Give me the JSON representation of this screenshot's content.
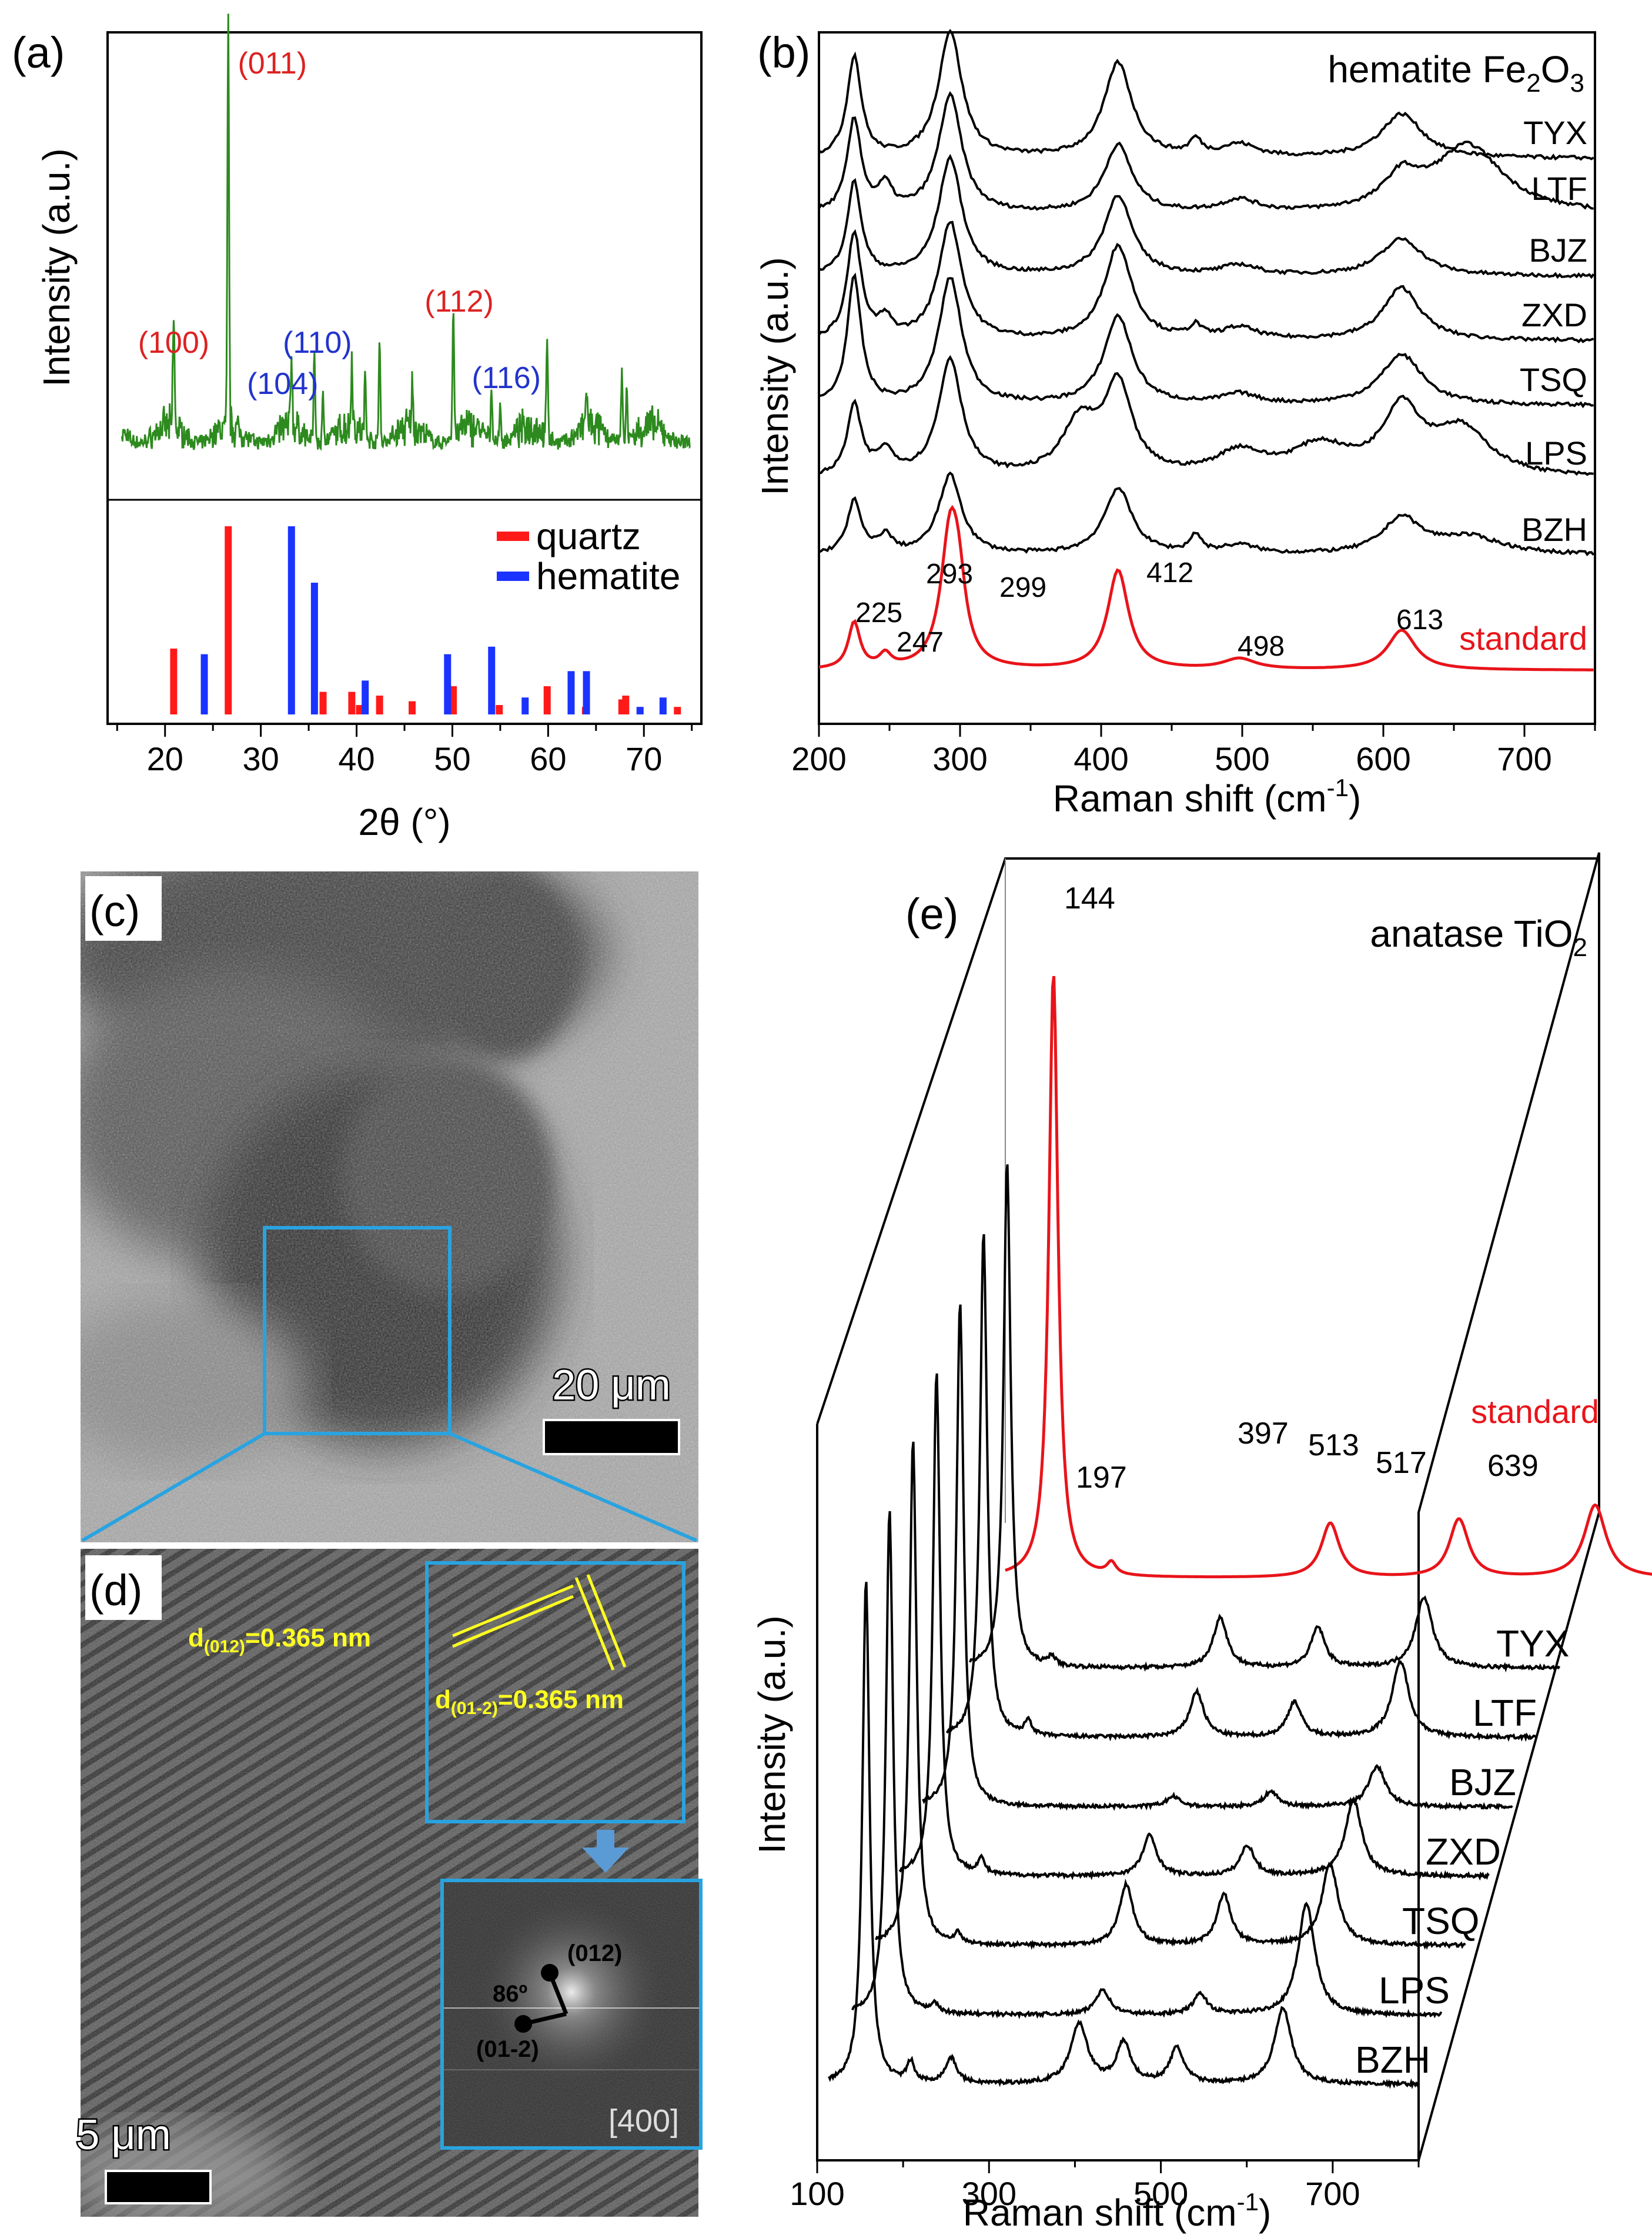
{
  "chart_data": [
    {
      "panel": "(a)",
      "type": "line",
      "xlabel": "2θ (°)",
      "ylabel": "Intensity (a.u.)",
      "xlim": [
        14,
        76
      ],
      "xticks": [
        20,
        30,
        40,
        50,
        60,
        70
      ],
      "pattern_peaks": [
        {
          "x": 20.9,
          "h": 0.28
        },
        {
          "x": 26.6,
          "h": 1.0
        },
        {
          "x": 33.2,
          "h": 0.18
        },
        {
          "x": 35.6,
          "h": 0.22
        },
        {
          "x": 36.5,
          "h": 0.12
        },
        {
          "x": 39.5,
          "h": 0.17
        },
        {
          "x": 40.9,
          "h": 0.14
        },
        {
          "x": 42.4,
          "h": 0.25
        },
        {
          "x": 45.8,
          "h": 0.1
        },
        {
          "x": 50.1,
          "h": 0.31
        },
        {
          "x": 54.1,
          "h": 0.12
        },
        {
          "x": 55.0,
          "h": 0.09
        },
        {
          "x": 59.9,
          "h": 0.23
        },
        {
          "x": 64.0,
          "h": 0.1
        },
        {
          "x": 67.7,
          "h": 0.17
        },
        {
          "x": 68.2,
          "h": 0.13
        }
      ],
      "peak_labels": [
        {
          "text": "(011)",
          "x": 26.6,
          "color": "#dd2222"
        },
        {
          "text": "(100)",
          "x": 20.9,
          "color": "#dd2222"
        },
        {
          "text": "(104)",
          "x": 33.2,
          "color": "#2233cc"
        },
        {
          "text": "(110)",
          "x": 35.6,
          "color": "#2233cc"
        },
        {
          "text": "(112)",
          "x": 50.1,
          "color": "#dd2222"
        },
        {
          "text": "(116)",
          "x": 54.1,
          "color": "#2233cc"
        }
      ],
      "reference": {
        "legend": [
          {
            "name": "quartz",
            "color": "#ff1a1a"
          },
          {
            "name": "hematite",
            "color": "#1a33ff"
          }
        ],
        "quartz": [
          {
            "x": 20.9,
            "h": 0.35
          },
          {
            "x": 26.6,
            "h": 1.0
          },
          {
            "x": 36.5,
            "h": 0.12
          },
          {
            "x": 39.5,
            "h": 0.12
          },
          {
            "x": 40.3,
            "h": 0.05
          },
          {
            "x": 42.4,
            "h": 0.1
          },
          {
            "x": 45.8,
            "h": 0.07
          },
          {
            "x": 50.1,
            "h": 0.15
          },
          {
            "x": 54.9,
            "h": 0.05
          },
          {
            "x": 59.9,
            "h": 0.15
          },
          {
            "x": 63.9,
            "h": 0.04
          },
          {
            "x": 67.7,
            "h": 0.08
          },
          {
            "x": 68.1,
            "h": 0.1
          },
          {
            "x": 73.5,
            "h": 0.04
          }
        ],
        "hematite": [
          {
            "x": 24.1,
            "h": 0.32
          },
          {
            "x": 33.2,
            "h": 1.0
          },
          {
            "x": 35.6,
            "h": 0.7
          },
          {
            "x": 40.9,
            "h": 0.18
          },
          {
            "x": 49.5,
            "h": 0.32
          },
          {
            "x": 54.1,
            "h": 0.36
          },
          {
            "x": 57.6,
            "h": 0.09
          },
          {
            "x": 62.4,
            "h": 0.23
          },
          {
            "x": 64.0,
            "h": 0.23
          },
          {
            "x": 69.6,
            "h": 0.04
          },
          {
            "x": 72.0,
            "h": 0.09
          }
        ]
      }
    },
    {
      "panel": "(b)",
      "type": "line",
      "title": "hematite Fe2O3",
      "title_main": "hematite Fe",
      "title_sub": "2",
      "title_main2": "O",
      "title_sub2": "3",
      "xlabel_main": "Raman shift (cm",
      "xlabel_sup": "-1",
      "xlabel_end": ")",
      "ylabel": "Intensity (a.u.)",
      "xlim": [
        200,
        750
      ],
      "xticks": [
        200,
        300,
        400,
        500,
        600,
        700
      ],
      "series": [
        {
          "name": "TYX",
          "color": "#000000",
          "peaks": [
            {
              "x": 225,
              "h": 0.8,
              "w": 6
            },
            {
              "x": 293,
              "h": 1.0,
              "w": 10
            },
            {
              "x": 412,
              "h": 0.75,
              "w": 12
            },
            {
              "x": 467,
              "h": 0.12,
              "w": 5
            },
            {
              "x": 498,
              "h": 0.1,
              "w": 15
            },
            {
              "x": 613,
              "h": 0.35,
              "w": 18
            }
          ]
        },
        {
          "name": "LTF",
          "color": "#000000",
          "peaks": [
            {
              "x": 225,
              "h": 0.75,
              "w": 6
            },
            {
              "x": 247,
              "h": 0.2,
              "w": 6
            },
            {
              "x": 293,
              "h": 0.95,
              "w": 10
            },
            {
              "x": 412,
              "h": 0.55,
              "w": 12
            },
            {
              "x": 498,
              "h": 0.1,
              "w": 15
            },
            {
              "x": 613,
              "h": 0.25,
              "w": 15
            },
            {
              "x": 660,
              "h": 0.55,
              "w": 30
            }
          ]
        },
        {
          "name": "BJZ",
          "color": "#000000",
          "peaks": [
            {
              "x": 225,
              "h": 0.75,
              "w": 6
            },
            {
              "x": 293,
              "h": 0.95,
              "w": 10
            },
            {
              "x": 412,
              "h": 0.65,
              "w": 12
            },
            {
              "x": 498,
              "h": 0.08,
              "w": 15
            },
            {
              "x": 613,
              "h": 0.3,
              "w": 18
            }
          ]
        },
        {
          "name": "ZXD",
          "color": "#000000",
          "peaks": [
            {
              "x": 225,
              "h": 0.9,
              "w": 6
            },
            {
              "x": 247,
              "h": 0.15,
              "w": 6
            },
            {
              "x": 293,
              "h": 1.0,
              "w": 10
            },
            {
              "x": 412,
              "h": 0.8,
              "w": 12
            },
            {
              "x": 467,
              "h": 0.1,
              "w": 5
            },
            {
              "x": 498,
              "h": 0.1,
              "w": 15
            },
            {
              "x": 613,
              "h": 0.45,
              "w": 16
            }
          ]
        },
        {
          "name": "TSQ",
          "color": "#000000",
          "peaks": [
            {
              "x": 225,
              "h": 1.0,
              "w": 6
            },
            {
              "x": 293,
              "h": 1.0,
              "w": 10
            },
            {
              "x": 412,
              "h": 0.7,
              "w": 12
            },
            {
              "x": 498,
              "h": 0.08,
              "w": 15
            },
            {
              "x": 613,
              "h": 0.4,
              "w": 18
            }
          ]
        },
        {
          "name": "LPS",
          "color": "#000000",
          "peaks": [
            {
              "x": 225,
              "h": 0.6,
              "w": 6
            },
            {
              "x": 247,
              "h": 0.2,
              "w": 8
            },
            {
              "x": 293,
              "h": 1.0,
              "w": 10
            },
            {
              "x": 385,
              "h": 0.45,
              "w": 15
            },
            {
              "x": 412,
              "h": 0.75,
              "w": 12
            },
            {
              "x": 498,
              "h": 0.2,
              "w": 20
            },
            {
              "x": 555,
              "h": 0.25,
              "w": 25
            },
            {
              "x": 613,
              "h": 0.55,
              "w": 16
            },
            {
              "x": 655,
              "h": 0.4,
              "w": 25
            }
          ]
        },
        {
          "name": "BZH",
          "color": "#000000",
          "peaks": [
            {
              "x": 225,
              "h": 0.6,
              "w": 6
            },
            {
              "x": 247,
              "h": 0.2,
              "w": 6
            },
            {
              "x": 293,
              "h": 0.9,
              "w": 10
            },
            {
              "x": 412,
              "h": 0.75,
              "w": 12
            },
            {
              "x": 467,
              "h": 0.2,
              "w": 5
            },
            {
              "x": 498,
              "h": 0.1,
              "w": 15
            },
            {
              "x": 613,
              "h": 0.4,
              "w": 16
            },
            {
              "x": 660,
              "h": 0.2,
              "w": 30
            }
          ]
        },
        {
          "name": "standard",
          "color": "#e8141a",
          "peaks": [
            {
              "x": 225,
              "h": 0.35,
              "w": 5
            },
            {
              "x": 247,
              "h": 0.1,
              "w": 5
            },
            {
              "x": 293,
              "h": 1.0,
              "w": 8
            },
            {
              "x": 299,
              "h": 0.4,
              "w": 6
            },
            {
              "x": 412,
              "h": 0.75,
              "w": 9
            },
            {
              "x": 498,
              "h": 0.08,
              "w": 14
            },
            {
              "x": 613,
              "h": 0.3,
              "w": 12
            }
          ]
        }
      ],
      "peak_labels": [
        {
          "text": "225",
          "x": 225
        },
        {
          "text": "247",
          "x": 247
        },
        {
          "text": "293",
          "x": 293
        },
        {
          "text": "299",
          "x": 299
        },
        {
          "text": "412",
          "x": 412
        },
        {
          "text": "498",
          "x": 498
        },
        {
          "text": "613",
          "x": 613
        }
      ]
    },
    {
      "panel": "(e)",
      "type": "line",
      "title_main": "anatase TiO",
      "title_sub": "2",
      "xlabel_main": "Raman shift (cm",
      "xlabel_sup": "-1",
      "xlabel_end": ")",
      "ylabel": "Intensity (a.u.)",
      "xlim": [
        100,
        800
      ],
      "xticks": [
        100,
        300,
        500,
        700
      ],
      "series": [
        {
          "name": "standard",
          "color": "#e8141a",
          "peaks": [
            {
              "x": 144,
              "h": 1.0,
              "w": 5
            },
            {
              "x": 197,
              "h": 0.02,
              "w": 5
            },
            {
              "x": 397,
              "h": 0.09,
              "w": 10
            },
            {
              "x": 513,
              "h": 0.06,
              "w": 10
            },
            {
              "x": 517,
              "h": 0.04,
              "w": 10
            },
            {
              "x": 639,
              "h": 0.12,
              "w": 12
            }
          ]
        },
        {
          "name": "TYX",
          "color": "#000000",
          "peaks": [
            {
              "x": 144,
              "h": 1.0,
              "w": 5
            },
            {
              "x": 197,
              "h": 0.02,
              "w": 5
            },
            {
              "x": 397,
              "h": 0.1,
              "w": 10
            },
            {
              "x": 513,
              "h": 0.08,
              "w": 10
            },
            {
              "x": 639,
              "h": 0.14,
              "w": 12
            }
          ]
        },
        {
          "name": "LTF",
          "color": "#000000",
          "peaks": [
            {
              "x": 144,
              "h": 1.0,
              "w": 5
            },
            {
              "x": 197,
              "h": 0.03,
              "w": 5
            },
            {
              "x": 397,
              "h": 0.09,
              "w": 10
            },
            {
              "x": 513,
              "h": 0.07,
              "w": 10
            },
            {
              "x": 639,
              "h": 0.15,
              "w": 12
            }
          ]
        },
        {
          "name": "BJZ",
          "color": "#000000",
          "peaks": [
            {
              "x": 144,
              "h": 1.0,
              "w": 5
            },
            {
              "x": 397,
              "h": 0.02,
              "w": 10
            },
            {
              "x": 513,
              "h": 0.03,
              "w": 10
            },
            {
              "x": 639,
              "h": 0.08,
              "w": 12
            }
          ]
        },
        {
          "name": "ZXD",
          "color": "#000000",
          "peaks": [
            {
              "x": 144,
              "h": 1.0,
              "w": 5
            },
            {
              "x": 197,
              "h": 0.03,
              "w": 5
            },
            {
              "x": 397,
              "h": 0.08,
              "w": 10
            },
            {
              "x": 513,
              "h": 0.06,
              "w": 10
            },
            {
              "x": 639,
              "h": 0.15,
              "w": 12
            }
          ]
        },
        {
          "name": "TSQ",
          "color": "#000000",
          "peaks": [
            {
              "x": 144,
              "h": 1.0,
              "w": 5
            },
            {
              "x": 197,
              "h": 0.02,
              "w": 5
            },
            {
              "x": 397,
              "h": 0.12,
              "w": 10
            },
            {
              "x": 513,
              "h": 0.1,
              "w": 10
            },
            {
              "x": 639,
              "h": 0.16,
              "w": 12
            }
          ]
        },
        {
          "name": "LPS",
          "color": "#000000",
          "peaks": [
            {
              "x": 144,
              "h": 1.0,
              "w": 5
            },
            {
              "x": 197,
              "h": 0.02,
              "w": 5
            },
            {
              "x": 397,
              "h": 0.05,
              "w": 10
            },
            {
              "x": 513,
              "h": 0.04,
              "w": 10
            },
            {
              "x": 639,
              "h": 0.22,
              "w": 12
            }
          ]
        },
        {
          "name": "BZH",
          "color": "#000000",
          "peaks": [
            {
              "x": 144,
              "h": 1.0,
              "w": 5
            },
            {
              "x": 197,
              "h": 0.04,
              "w": 5
            },
            {
              "x": 245,
              "h": 0.05,
              "w": 8
            },
            {
              "x": 397,
              "h": 0.12,
              "w": 12
            },
            {
              "x": 450,
              "h": 0.08,
              "w": 10
            },
            {
              "x": 513,
              "h": 0.07,
              "w": 10
            },
            {
              "x": 639,
              "h": 0.15,
              "w": 12
            }
          ]
        }
      ],
      "peak_labels": [
        {
          "text": "144",
          "x": 144
        },
        {
          "text": "197",
          "x": 197
        },
        {
          "text": "397",
          "x": 397
        },
        {
          "text": "513",
          "x": 513
        },
        {
          "text": "517",
          "x": 517
        },
        {
          "text": "639",
          "x": 639
        }
      ]
    }
  ],
  "panels": {
    "a": {
      "label": "(a)"
    },
    "b": {
      "label": "(b)"
    },
    "c": {
      "label": "(c)",
      "scalebar": "20 μm"
    },
    "d": {
      "label": "(d)",
      "scalebar": "5 μm",
      "d1_main": "d",
      "d1_sub": "(012)",
      "d1_val": "=0.365 nm",
      "d2_main": "d",
      "d2_sub": "(01-2)",
      "d2_val": "=0.365 nm",
      "fft_angle": "86º",
      "fft_spot1": "(012)",
      "fft_spot2": "(01-2)",
      "fft_zone": "[400]"
    },
    "e": {
      "label": "(e)"
    }
  },
  "colors": {
    "xrd_line": "#2d8a1e",
    "quartz": "#ff1a1a",
    "hematite": "#1a33ff",
    "standard": "#e8141a",
    "highlight_box": "#29a3e0",
    "yellow_annotation": "#ffff22"
  }
}
